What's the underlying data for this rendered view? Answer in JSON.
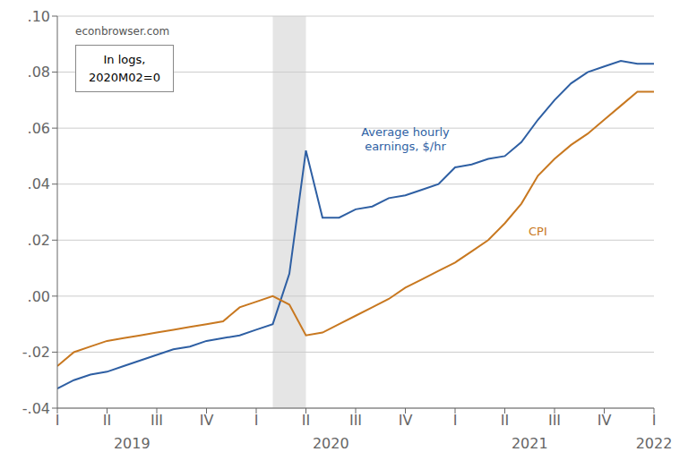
{
  "chart_data": {
    "type": "line",
    "x": [
      0,
      1,
      2,
      3,
      4,
      5,
      6,
      7,
      8,
      9,
      10,
      11,
      12,
      13,
      14,
      15,
      16,
      17,
      18,
      19,
      20,
      21,
      22,
      23,
      24,
      25,
      26,
      27,
      28,
      29,
      30,
      31,
      32,
      33,
      34,
      35,
      36
    ],
    "series": [
      {
        "name": "Average hourly\nearnings, $/hr",
        "color": "#2e5fa3",
        "values": [
          -0.033,
          -0.03,
          -0.028,
          -0.027,
          -0.025,
          -0.023,
          -0.021,
          -0.019,
          -0.018,
          -0.016,
          -0.015,
          -0.014,
          -0.012,
          -0.01,
          0.008,
          0.052,
          0.028,
          0.028,
          0.031,
          0.032,
          0.035,
          0.036,
          0.038,
          0.04,
          0.046,
          0.047,
          0.049,
          0.05,
          0.055,
          0.063,
          0.07,
          0.076,
          0.08,
          0.082,
          0.084,
          0.083,
          0.083
        ]
      },
      {
        "name": "CPI",
        "color": "#c87820",
        "values": [
          -0.025,
          -0.02,
          -0.018,
          -0.016,
          -0.015,
          -0.014,
          -0.013,
          -0.012,
          -0.011,
          -0.01,
          -0.009,
          -0.004,
          -0.002,
          0.0,
          -0.003,
          -0.014,
          -0.013,
          -0.01,
          -0.007,
          -0.004,
          -0.001,
          0.003,
          0.006,
          0.009,
          0.012,
          0.016,
          0.02,
          0.026,
          0.033,
          0.043,
          0.049,
          0.054,
          0.058,
          0.063,
          0.068,
          0.073,
          0.073
        ]
      }
    ],
    "xlim": [
      0,
      36
    ],
    "xticks": [
      {
        "value": 0,
        "label": "I"
      },
      {
        "value": 3,
        "label": "II"
      },
      {
        "value": 6,
        "label": "III"
      },
      {
        "value": 9,
        "label": "IV"
      },
      {
        "value": 12,
        "label": "I"
      },
      {
        "value": 15,
        "label": "II"
      },
      {
        "value": 18,
        "label": "III"
      },
      {
        "value": 21,
        "label": "IV"
      },
      {
        "value": 24,
        "label": "I"
      },
      {
        "value": 27,
        "label": "II"
      },
      {
        "value": 30,
        "label": "III"
      },
      {
        "value": 33,
        "label": "IV"
      },
      {
        "value": 36,
        "label": "I"
      }
    ],
    "x_groups": [
      {
        "value": 4.5,
        "label": "2019"
      },
      {
        "value": 16.5,
        "label": "2020"
      },
      {
        "value": 28.5,
        "label": "2021"
      },
      {
        "value": 36,
        "label": "2022"
      }
    ],
    "ylim": [
      -0.04,
      0.1
    ],
    "yticks": [
      {
        "value": -0.04,
        "label": "-.04"
      },
      {
        "value": -0.02,
        "label": "-.02"
      },
      {
        "value": 0.0,
        "label": ".00"
      },
      {
        "value": 0.02,
        "label": ".02"
      },
      {
        "value": 0.04,
        "label": ".04"
      },
      {
        "value": 0.06,
        "label": ".06"
      },
      {
        "value": 0.08,
        "label": ".08"
      },
      {
        "value": 0.1,
        "label": ".10"
      }
    ],
    "shaded_x": [
      13,
      15
    ],
    "grid": "y",
    "annotations": [
      "econbrowser.com",
      "In logs,\n2020M02=0"
    ]
  }
}
